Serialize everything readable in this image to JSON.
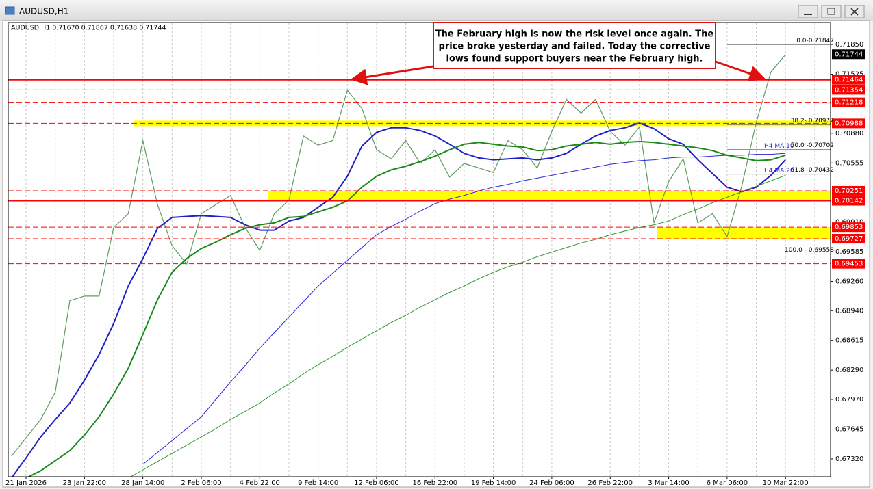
{
  "chart_data": {
    "type": "line",
    "title": "AUDUSD,H1",
    "subtitle": "AUDUSD,H1  0.71670 0.71867 0.71638 0.71744",
    "annotation": [
      "The February high is now the risk level once again. The",
      "price broke yesterday and failed. Today the corrective",
      "lows found support buyers near the February high."
    ],
    "categories": [
      null,
      "21 Jan 2026",
      null,
      null,
      null,
      "23 Jan 22:00",
      null,
      null,
      null,
      "28 Jan 14:00",
      null,
      null,
      null,
      "2 Feb 06:00",
      null,
      null,
      null,
      "4 Feb 22:00",
      null,
      null,
      null,
      "9 Feb 14:00",
      null,
      null,
      null,
      "12 Feb 06:00",
      null,
      null,
      null,
      "16 Feb 22:00",
      null,
      null,
      null,
      "19 Feb 14:00",
      null,
      null,
      null,
      "24 Feb 06:00",
      null,
      null,
      null,
      "26 Feb 22:00",
      null,
      null,
      null,
      "3 Mar 14:00",
      null,
      null,
      null,
      "6 Mar 06:00",
      null,
      null,
      null,
      "10 Mar 22:00",
      null,
      null
    ],
    "series": [
      {
        "color": "#5f9a5f",
        "width": 1.2,
        "values": [
          0.6735,
          0.6755,
          0.6775,
          0.6805,
          0.6905,
          0.691,
          0.691,
          0.6985,
          0.7,
          0.708,
          0.701,
          0.6965,
          0.6945,
          0.7,
          0.701,
          0.702,
          0.6985,
          0.696,
          0.7,
          0.7015,
          0.7085,
          0.7075,
          0.708,
          0.7135,
          0.7115,
          0.707,
          0.706,
          0.708,
          0.7055,
          0.707,
          0.704,
          0.7055,
          0.705,
          0.7045,
          0.708,
          0.707,
          0.705,
          0.709,
          0.7125,
          0.711,
          0.7125,
          0.709,
          0.7075,
          0.7095,
          0.699,
          0.7035,
          0.706,
          0.699,
          0.7,
          0.6975,
          0.703,
          0.71,
          0.7155,
          0.7174,
          null,
          null
        ]
      },
      {
        "color": "#1f1fc8",
        "width": 2,
        "values": [
          0.6711,
          0.6733,
          0.6756,
          0.6775,
          0.6793,
          0.6818,
          0.6846,
          0.688,
          0.6921,
          0.6951,
          0.6984,
          0.6996,
          0.6997,
          0.6998,
          0.6997,
          0.6996,
          0.6988,
          0.6982,
          0.6982,
          0.6992,
          0.6996,
          0.7007,
          0.7018,
          0.7041,
          0.7074,
          0.7089,
          0.7094,
          0.7094,
          0.7091,
          0.7085,
          0.7076,
          0.7066,
          0.7061,
          0.7059,
          0.706,
          0.7061,
          0.7059,
          0.7061,
          0.7066,
          0.7076,
          0.7085,
          0.7091,
          0.7094,
          0.7099,
          0.7093,
          0.7082,
          0.7076,
          0.7059,
          0.7044,
          0.7029,
          0.7024,
          0.7029,
          0.7042,
          0.7059,
          null,
          null
        ]
      },
      {
        "color": "#1a8a1a",
        "width": 2,
        "values": [
          0.6704,
          0.6711,
          0.6719,
          0.673,
          0.6741,
          0.6758,
          0.6778,
          0.6803,
          0.6831,
          0.6868,
          0.6906,
          0.6936,
          0.6951,
          0.6962,
          0.6969,
          0.6977,
          0.6984,
          0.6988,
          0.699,
          0.6996,
          0.6997,
          0.7002,
          0.7007,
          0.7014,
          0.7029,
          0.7041,
          0.7048,
          0.7052,
          0.7057,
          0.7063,
          0.707,
          0.7076,
          0.7078,
          0.7076,
          0.7074,
          0.7073,
          0.7069,
          0.707,
          0.7074,
          0.7076,
          0.7078,
          0.7076,
          0.7078,
          0.7079,
          0.7078,
          0.7076,
          0.7074,
          0.7072,
          0.7069,
          0.7064,
          0.7061,
          0.7058,
          0.7059,
          0.7064,
          null,
          null
        ]
      },
      {
        "color": "#2a2ad8",
        "width": 1,
        "values": [
          null,
          null,
          null,
          null,
          null,
          null,
          null,
          null,
          null,
          0.6726,
          0.6739,
          0.6752,
          0.6765,
          0.6778,
          0.6797,
          0.6816,
          0.6834,
          0.6853,
          0.687,
          0.6887,
          0.6904,
          0.6921,
          0.6935,
          0.6949,
          0.6963,
          0.6977,
          0.6986,
          0.6994,
          0.7003,
          0.7011,
          0.7016,
          0.702,
          0.7025,
          0.7029,
          0.7032,
          0.7036,
          0.7039,
          0.7042,
          0.7045,
          0.7048,
          0.7051,
          0.7054,
          0.7056,
          0.7058,
          0.7059,
          0.7061,
          0.7062,
          0.7062,
          0.7063,
          0.7064,
          0.7064,
          0.7065,
          0.7065,
          0.7066,
          null,
          null
        ]
      },
      {
        "color": "#2a9a2a",
        "width": 1,
        "values": [
          null,
          null,
          null,
          null,
          null,
          null,
          null,
          null,
          0.6711,
          0.672,
          0.6729,
          0.6738,
          0.6747,
          0.6756,
          0.6765,
          0.6775,
          0.6784,
          0.6793,
          0.6804,
          0.6814,
          0.6825,
          0.6835,
          0.6844,
          0.6854,
          0.6863,
          0.6872,
          0.6881,
          0.6889,
          0.6898,
          0.6906,
          0.6914,
          0.6921,
          0.6929,
          0.6936,
          0.6942,
          0.6947,
          0.6953,
          0.6958,
          0.6963,
          0.6968,
          0.6972,
          0.6977,
          0.6981,
          0.6985,
          0.6988,
          0.6992,
          0.6999,
          0.7005,
          0.7012,
          0.7018,
          0.7024,
          0.703,
          0.7036,
          0.7042,
          null,
          null
        ]
      }
    ],
    "ylim": [
      0.67125,
      0.7209
    ],
    "yticks": [
      {
        "value": 0.7185,
        "label": "0.71850"
      },
      {
        "value": 0.71525,
        "label": "0.71525"
      },
      {
        "value": 0.7088,
        "label": "0.70880"
      },
      {
        "value": 0.70555,
        "label": "0.70555"
      },
      {
        "value": 0.6991,
        "label": "0.69910"
      },
      {
        "value": 0.69585,
        "label": "0.69585"
      },
      {
        "value": 0.6926,
        "label": "0.69260"
      },
      {
        "value": 0.6894,
        "label": "0.68940"
      },
      {
        "value": 0.68615,
        "label": "0.68615"
      },
      {
        "value": 0.6829,
        "label": "0.68290"
      },
      {
        "value": 0.6797,
        "label": "0.67970"
      },
      {
        "value": 0.67645,
        "label": "0.67645"
      },
      {
        "value": 0.6732,
        "label": "0.67320"
      }
    ],
    "levels": [
      {
        "price": 0.71744,
        "color": "#000000",
        "style": "none"
      },
      {
        "price": 0.71464,
        "color": "#ff0000",
        "style": "solid"
      },
      {
        "price": 0.71354,
        "color": "#ff0000",
        "style": "dashed"
      },
      {
        "price": 0.71218,
        "color": "#ff0000",
        "style": "dashed"
      },
      {
        "price": 0.70988,
        "color": "#ff0000",
        "style": "dashed"
      },
      {
        "price": 0.70251,
        "color": "#ff0000",
        "style": "dashed"
      },
      {
        "price": 0.70142,
        "color": "#ff0000",
        "style": "solid"
      },
      {
        "price": 0.69853,
        "color": "#ff0000",
        "style": "dashed"
      },
      {
        "price": 0.69727,
        "color": "#ff0000",
        "style": "dashed"
      },
      {
        "price": 0.69453,
        "color": "#ff0000",
        "style": "dashed"
      }
    ],
    "fibonacci": [
      "0.0-0.71847",
      "38.2- 0.70972",
      "50.0 -0.70702",
      "61.8 -0.70432",
      "100.0 - 0.69558"
    ],
    "ma_labels": [
      "H4 MA:10",
      "H4 MA:20"
    ],
    "grid": true
  }
}
